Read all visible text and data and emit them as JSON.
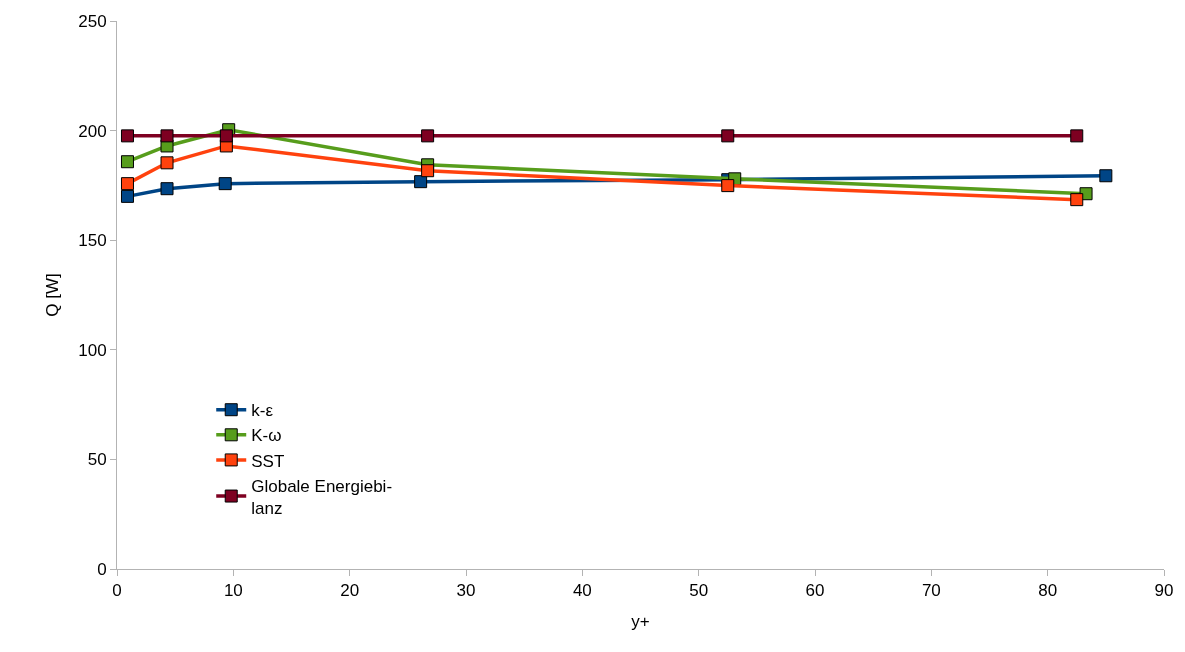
{
  "chart_data": {
    "type": "line",
    "xlabel": "y+",
    "ylabel": "Q [W]",
    "xlim": [
      0,
      90
    ],
    "xticks": [
      0,
      10,
      20,
      30,
      40,
      50,
      60,
      70,
      80,
      90
    ],
    "ylim": [
      0,
      250
    ],
    "yticks": [
      0,
      50,
      100,
      150,
      200,
      250
    ],
    "legend": "bottom left",
    "marker": "square",
    "line_style": "solid",
    "series": [
      {
        "name": "k-ε",
        "color": "#004586",
        "x": [
          0.9,
          4.3,
          9.3,
          26.1,
          52.5,
          85.0
        ],
        "values": [
          170,
          173.5,
          175.8,
          176.7,
          177.6,
          179.4
        ]
      },
      {
        "name": "K-ω",
        "color": "#579d1c",
        "x": [
          0.9,
          4.3,
          9.6,
          26.7,
          53.1,
          83.3
        ],
        "values": [
          185.8,
          193,
          200.4,
          184.4,
          178,
          171.2
        ]
      },
      {
        "name": "SST",
        "color": "#ff420e",
        "x": [
          0.9,
          4.3,
          9.4,
          26.7,
          52.5,
          82.5
        ],
        "values": [
          175.8,
          185.3,
          193,
          181.7,
          174.9,
          168.5
        ]
      },
      {
        "name": "Globale Energiebi-\nlanz",
        "color": "#7e0021",
        "x": [
          0.9,
          4.3,
          9.4,
          26.7,
          52.5,
          82.5
        ],
        "values": [
          197.6,
          197.6,
          197.6,
          197.6,
          197.6,
          197.6
        ]
      }
    ]
  }
}
